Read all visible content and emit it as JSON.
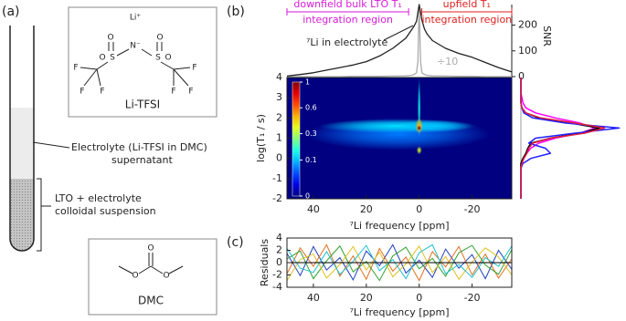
{
  "panel_a": {
    "label": "(a)",
    "litfsi": {
      "cation": "Li⁺",
      "n": "N⁻",
      "s": [
        "S",
        "S"
      ],
      "o": [
        "O",
        "O",
        "O",
        "O"
      ],
      "f": [
        "F",
        "F",
        "F",
        "F",
        "F",
        "F"
      ],
      "name": "Li-TFSI"
    },
    "dmc": {
      "o": [
        "O",
        "O",
        "O"
      ],
      "name": "DMC"
    },
    "supernatant": [
      "Electrolyte (Li-TFSI in DMC)",
      "supernatant"
    ],
    "suspension": [
      "LTO + electrolyte",
      "colloidal suspension"
    ]
  },
  "chart_data": [
    {
      "type": "line",
      "panel_label": "(b)",
      "ylabel": "SNR",
      "x": [
        50,
        45,
        40,
        35,
        30,
        25,
        20,
        15,
        10,
        5,
        3,
        2,
        1,
        0.5,
        0,
        -0.5,
        -1,
        -2,
        -3,
        -5,
        -10,
        -15,
        -20,
        -25,
        -30,
        -35
      ],
      "xlim": [
        50,
        -35
      ],
      "ylim": [
        0,
        280
      ],
      "yticks": [
        0,
        100,
        200
      ],
      "series": [
        {
          "color": "#222222",
          "values": [
            2,
            8,
            15,
            25,
            35,
            45,
            58,
            80,
            110,
            150,
            180,
            195,
            215,
            250,
            280,
            250,
            220,
            185,
            165,
            140,
            110,
            90,
            75,
            55,
            35,
            18
          ]
        },
        {
          "color": "#aaaaaa",
          "values": [
            0,
            0,
            0,
            0,
            0,
            1,
            1,
            1,
            2,
            3,
            5,
            8,
            15,
            60,
            280,
            60,
            15,
            8,
            5,
            3,
            2,
            1,
            1,
            0,
            0,
            0
          ]
        }
      ],
      "annotations": [
        "⁷Li in electrolyte",
        "÷10"
      ],
      "regions": [
        {
          "lines": [
            "downfield bulk LTO T₁",
            "integration region"
          ],
          "color": "#d61ad6",
          "from": 50,
          "to": 4
        },
        {
          "lines": [
            "upfield T₁",
            "integration region"
          ],
          "color": "#e02020",
          "from": -1,
          "to": -35
        }
      ]
    },
    {
      "type": "heatmap",
      "xlabel": "⁷Li frequency [ppm]",
      "ylabel": "log(T₁ / s)",
      "xlim": [
        50,
        -35
      ],
      "xticks": [
        40,
        20,
        0,
        -20
      ],
      "ylim": [
        -2,
        4
      ],
      "yticks": [
        -2,
        -1,
        0,
        1,
        2,
        3,
        4
      ],
      "colorbar": {
        "lim": [
          0,
          1
        ],
        "ticks": [
          0,
          0.1,
          0.3,
          0.6,
          1
        ],
        "scale": "sqrt",
        "colormap": "jet"
      },
      "peaks": [
        {
          "x": 8,
          "y": 1.2,
          "value": 0.06,
          "x_width": 35,
          "y_width": 0.8
        },
        {
          "x": 8,
          "y": 1.6,
          "value": 0.12,
          "x_width": 30,
          "y_width": 0.35
        },
        {
          "x": -5,
          "y": 1.6,
          "value": 0.1,
          "x_width": 15,
          "y_width": 0.3
        },
        {
          "x": 0,
          "y": 2.5,
          "value": 0.15,
          "x_width": 0.6,
          "y_width": 1.5
        },
        {
          "x": 0,
          "y": 1.6,
          "value": 0.5,
          "x_width": 1.5,
          "y_width": 0.4
        },
        {
          "x": 0,
          "y": 0.4,
          "value": 0.35,
          "x_width": 1,
          "y_width": 0.2
        },
        {
          "x": 0,
          "y": 1.5,
          "value": 1,
          "x_width": 0.8,
          "y_width": 0.12
        }
      ]
    },
    {
      "type": "profile",
      "y": [
        -2,
        -1.75,
        -1.5,
        -1.25,
        -1,
        -0.75,
        -0.5,
        -0.25,
        0,
        0.25,
        0.5,
        0.75,
        1,
        1.25,
        1.5,
        1.75,
        2,
        2.25,
        2.5,
        2.75,
        3,
        3.25,
        3.5,
        3.75,
        4
      ],
      "ylim": [
        -2,
        4
      ],
      "xlim": [
        0,
        1.05
      ],
      "series": [
        {
          "color": "#ff00ff",
          "values": [
            0,
            0,
            0,
            0,
            0,
            0,
            0,
            0,
            0.03,
            0.06,
            0.1,
            0.18,
            0.35,
            0.6,
            0.75,
            0.6,
            0.35,
            0.15,
            0.05,
            0.02,
            0.01,
            0,
            0,
            0,
            0
          ]
        },
        {
          "color": "#000000",
          "values": [
            0,
            0,
            0,
            0,
            0,
            0,
            0,
            0,
            0.02,
            0.05,
            0.07,
            0.1,
            0.3,
            0.6,
            0.8,
            0.5,
            0.18,
            0.05,
            0.01,
            0,
            0,
            0,
            0,
            0,
            0
          ]
        },
        {
          "color": "#2020ff",
          "values": [
            0,
            0,
            0,
            0,
            0,
            0,
            0,
            0.02,
            0.1,
            0.3,
            0.25,
            0.08,
            0.15,
            0.55,
            1.0,
            0.45,
            0.12,
            0.03,
            0.01,
            0,
            0,
            0,
            0,
            0,
            0
          ]
        },
        {
          "color": "#e02040",
          "values": [
            0,
            0,
            0,
            0,
            0,
            0,
            0,
            0.01,
            0.03,
            0.06,
            0.08,
            0.12,
            0.3,
            0.65,
            0.85,
            0.55,
            0.2,
            0.05,
            0.01,
            0,
            0,
            0,
            0,
            0,
            0
          ]
        }
      ]
    },
    {
      "type": "line",
      "panel_label": "(c)",
      "ylabel": "Residuals",
      "xlabel": "⁷Li frequency [ppm]",
      "x": [
        50,
        45,
        40,
        35,
        30,
        25,
        20,
        15,
        10,
        5,
        0,
        -5,
        -10,
        -15,
        -20,
        -25,
        -30,
        -35
      ],
      "xlim": [
        50,
        -35
      ],
      "xticks": [
        40,
        20,
        0,
        -20
      ],
      "ylim": [
        -4,
        4
      ],
      "yticks": [
        -4,
        -2,
        0,
        2,
        4
      ],
      "series": [
        {
          "color": "#1f3fbf",
          "values": [
            1.5,
            -2.1,
            2.6,
            -1.2,
            0.8,
            -2.8,
            1.9,
            -0.5,
            2.9,
            -1.7,
            0.4,
            -2.4,
            2.2,
            -0.9,
            1.3,
            -2.6,
            2.0,
            -1.1
          ]
        },
        {
          "color": "#e07020",
          "values": [
            -1.8,
            2.4,
            -0.6,
            2.9,
            -2.2,
            1.1,
            -2.7,
            2.3,
            -1.4,
            0.9,
            -2.9,
            1.8,
            -0.7,
            2.6,
            -2.0,
            1.4,
            -2.5,
            0.6
          ]
        },
        {
          "color": "#30a030",
          "values": [
            0.6,
            1.9,
            -2.6,
            0.3,
            2.7,
            -1.5,
            0.2,
            -2.9,
            1.1,
            2.5,
            -1.0,
            0.7,
            -2.2,
            1.6,
            2.8,
            -0.4,
            -1.9,
            2.1
          ]
        },
        {
          "color": "#e0c020",
          "values": [
            -2.9,
            0.5,
            1.4,
            -2.5,
            -0.3,
            2.6,
            -1.2,
            1.7,
            -2.3,
            -0.2,
            2.7,
            -1.6,
            1.0,
            -2.7,
            0.1,
            2.4,
            0.9,
            -2.0
          ]
        },
        {
          "color": "#20c0d0",
          "values": [
            2.3,
            -0.9,
            -1.6,
            1.8,
            -1.9,
            0.2,
            2.8,
            -1.3,
            0.5,
            -2.6,
            1.6,
            2.9,
            -1.8,
            -0.3,
            -2.4,
            0.8,
            -0.6,
            2.7
          ]
        },
        {
          "color": "#000000",
          "values": [
            0,
            0,
            0,
            0,
            0,
            0,
            0,
            0,
            0,
            0,
            0,
            0,
            0,
            0,
            0,
            0,
            0,
            0
          ]
        }
      ]
    }
  ]
}
